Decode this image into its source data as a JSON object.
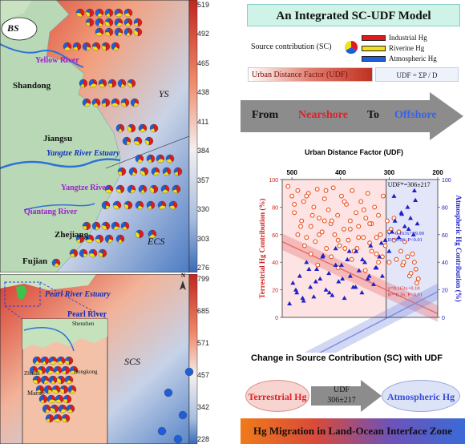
{
  "top_map": {
    "labels": {
      "bs": "BS",
      "yellow_river": "Yellow River",
      "shandong": "Shandong",
      "ys": "YS",
      "jiangsu": "Jiangsu",
      "yangtze_estuary": "Yangtze River Estuary",
      "yangtze_river": "Yangtze River",
      "qiantang_river": "Qiantang River",
      "zhejiang": "Zhejiang",
      "ecs": "ECS",
      "fujian": "Fujian"
    },
    "colorbar_ticks": [
      "519",
      "492",
      "465",
      "438",
      "411",
      "384",
      "357",
      "330",
      "303",
      "276"
    ]
  },
  "bottom_map": {
    "labels": {
      "pearl_river_estuary": "Pearl River Estuary",
      "pearl_river": "Pearl River",
      "shenzhen": "Shenzhen",
      "zhuhai": "Zhuhai",
      "hongkong": "Hongkong",
      "macao": "Macao",
      "scs": "SCS",
      "north": "N"
    },
    "colorbar_ticks": [
      "799",
      "685",
      "571",
      "457",
      "342",
      "228"
    ]
  },
  "right_panel": {
    "title": "An Integrated SC-UDF Model",
    "sc_label": "Source contribution (SC)",
    "legend": [
      "Industrial Hg",
      "Riverine Hg",
      "Atmospheric Hg"
    ],
    "udf_label": "Urban Distance Factor (UDF)",
    "udf_formula": "UDF = ΣP / D",
    "arrow": {
      "from": "From",
      "near": "Nearshore",
      "to": "To",
      "off": "Offshore"
    },
    "sc_title": "Change in Source Contribution (SC) with UDF",
    "flow": {
      "left": "Terrestrial Hg",
      "mid1": "UDF",
      "mid2": "306±217",
      "right": "Atmospheric Hg"
    },
    "bottom": "Hg Migration in Land-Ocean Interface Zone"
  },
  "colors": {
    "industrial": "#e01b1b",
    "riverine": "#f2e01a",
    "atmospheric": "#1f5ed8",
    "terrestrial_pts": "#e8501c",
    "atmospheric_pts": "#2020c8"
  },
  "chart_data": {
    "type": "scatter",
    "title": "Urban Distance Factor (UDF)",
    "xlabel": "Urban Distance Factor (UDF)",
    "ylabel_left": "Terrestrial Hg Contribution (%)",
    "ylabel_right": "Atmospheric Hg Contribution (%)",
    "xlim": [
      520,
      200
    ],
    "ylim": [
      0,
      100
    ],
    "x_ticks": [
      "500",
      "400",
      "300",
      "200"
    ],
    "y_ticks": [
      "0",
      "20",
      "40",
      "60",
      "80",
      "100"
    ],
    "threshold_label": "UDF*=306±217",
    "threshold": 306,
    "series": [
      {
        "name": "Terrestrial Hg",
        "fit": "y=0.163x+0.10",
        "stats": "R²=0.26, P<0.01",
        "x": [
          508,
          500,
          495,
          488,
          480,
          476,
          470,
          466,
          461,
          455,
          452,
          448,
          444,
          438,
          433,
          429,
          425,
          420,
          415,
          412,
          406,
          402,
          398,
          393,
          388,
          384,
          380,
          376,
          372,
          368,
          363,
          358,
          353,
          348,
          344,
          340,
          336,
          330,
          326,
          322,
          318,
          312,
          308,
          304,
          300,
          296,
          290,
          285,
          280,
          276,
          272,
          268,
          262,
          258,
          252,
          248,
          245,
          240,
          495,
          482,
          470,
          458,
          444,
          430,
          418,
          405,
          392,
          380,
          366,
          352,
          340,
          326,
          314,
          300,
          290,
          270,
          255,
          243,
          488,
          474,
          461,
          447,
          433,
          419,
          405,
          391,
          377,
          363,
          349,
          336,
          322
        ],
        "y": [
          95,
          88,
          76,
          92,
          70,
          84,
          58,
          90,
          66,
          80,
          55,
          93,
          72,
          62,
          86,
          50,
          78,
          68,
          94,
          60,
          74,
          52,
          88,
          64,
          82,
          56,
          70,
          92,
          48,
          76,
          66,
          84,
          58,
          72,
          90,
          54,
          68,
          80,
          46,
          74,
          60,
          88,
          52,
          70,
          40,
          64,
          56,
          42,
          62,
          48,
          38,
          55,
          44,
          30,
          46,
          40,
          35,
          28,
          82,
          66,
          88,
          74,
          60,
          92,
          70,
          56,
          84,
          64,
          50,
          78,
          68,
          58,
          44,
          62,
          72,
          40,
          32,
          25,
          60,
          52,
          46,
          38,
          70,
          44,
          36,
          50,
          42,
          58,
          34,
          48,
          40
        ]
      },
      {
        "name": "Atmospheric Hg",
        "fit": "y=-0.163x+99.90",
        "stats": "R²=0.26, P<0.01",
        "x": [
          505,
          498,
          490,
          484,
          476,
          470,
          462,
          455,
          449,
          442,
          436,
          430,
          424,
          417,
          410,
          404,
          398,
          392,
          386,
          380,
          374,
          368,
          362,
          356,
          350,
          344,
          338,
          332,
          326,
          320,
          314,
          308,
          300,
          294,
          288,
          280,
          274,
          268,
          262,
          256,
          250,
          246,
          242,
          492,
          478,
          465,
          451,
          437,
          423,
          410,
          396,
          382,
          369,
          355,
          341,
          328,
          316,
          290,
          275,
          260,
          248
        ],
        "y": [
          10,
          25,
          18,
          30,
          12,
          40,
          22,
          15,
          35,
          28,
          45,
          20,
          32,
          16,
          50,
          26,
          38,
          14,
          42,
          30,
          22,
          48,
          34,
          18,
          40,
          28,
          52,
          24,
          36,
          44,
          30,
          56,
          48,
          62,
          70,
          58,
          75,
          66,
          80,
          72,
          60,
          85,
          68,
          20,
          14,
          35,
          26,
          44,
          18,
          38,
          28,
          48,
          22,
          42,
          30,
          36,
          54,
          88,
          76,
          64,
          92
        ]
      }
    ]
  }
}
